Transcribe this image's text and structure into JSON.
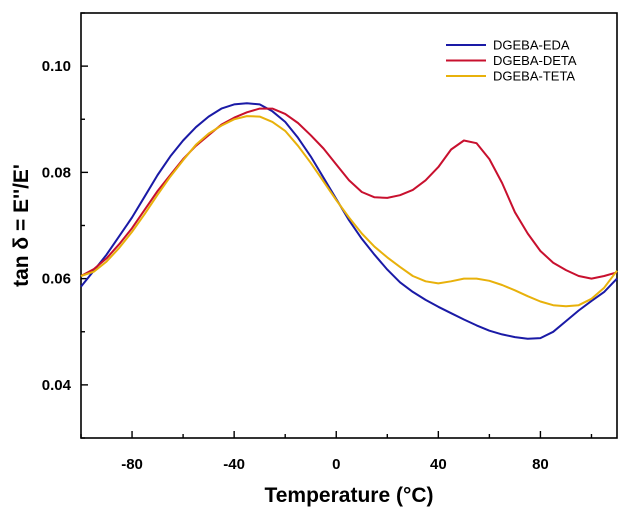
{
  "chart_data": {
    "type": "line",
    "title": "",
    "xlabel": "Temperature (°C)",
    "ylabel": "tan δ = E''/E'",
    "xlim": [
      -100,
      110
    ],
    "ylim": [
      0.03,
      0.11
    ],
    "xticks": [
      -80,
      -40,
      0,
      40,
      80
    ],
    "xtick_labels": [
      "-80",
      "-40",
      "0",
      "40",
      "80"
    ],
    "yticks": [
      0.04,
      0.06,
      0.08,
      0.1
    ],
    "ytick_labels": [
      "0.04",
      "0.06",
      "0.08",
      "0.10"
    ],
    "grid": false,
    "legend_position": "top-right",
    "series": [
      {
        "name": "DGEBA-EDA",
        "color": "#1a1aa6",
        "x": [
          -100,
          -95,
          -90,
          -85,
          -80,
          -75,
          -70,
          -65,
          -60,
          -55,
          -50,
          -45,
          -40,
          -35,
          -30,
          -25,
          -20,
          -15,
          -10,
          -5,
          0,
          5,
          10,
          15,
          20,
          25,
          30,
          35,
          40,
          45,
          50,
          55,
          60,
          65,
          70,
          75,
          80,
          85,
          90,
          95,
          100,
          105,
          110
        ],
        "y": [
          0.0585,
          0.0615,
          0.0645,
          0.068,
          0.0715,
          0.0755,
          0.0795,
          0.083,
          0.086,
          0.0885,
          0.0905,
          0.092,
          0.0928,
          0.093,
          0.0928,
          0.0915,
          0.0895,
          0.0865,
          0.083,
          0.079,
          0.075,
          0.071,
          0.0675,
          0.0645,
          0.0617,
          0.0593,
          0.0575,
          0.056,
          0.0547,
          0.0535,
          0.0523,
          0.0512,
          0.0502,
          0.0495,
          0.049,
          0.0487,
          0.0488,
          0.05,
          0.052,
          0.054,
          0.0558,
          0.0575,
          0.06
        ]
      },
      {
        "name": "DGEBA-DETA",
        "color": "#c8102e",
        "x": [
          -100,
          -95,
          -90,
          -85,
          -80,
          -75,
          -70,
          -65,
          -60,
          -55,
          -50,
          -45,
          -40,
          -35,
          -30,
          -25,
          -20,
          -15,
          -10,
          -5,
          0,
          5,
          10,
          15,
          20,
          25,
          30,
          35,
          40,
          45,
          50,
          55,
          60,
          65,
          70,
          75,
          80,
          85,
          90,
          95,
          100,
          105,
          110
        ],
        "y": [
          0.0605,
          0.0618,
          0.0638,
          0.0665,
          0.0695,
          0.073,
          0.0765,
          0.0795,
          0.0825,
          0.085,
          0.087,
          0.089,
          0.0903,
          0.0913,
          0.092,
          0.092,
          0.091,
          0.0893,
          0.087,
          0.0845,
          0.0815,
          0.0785,
          0.0763,
          0.0753,
          0.0752,
          0.0757,
          0.0767,
          0.0785,
          0.081,
          0.0843,
          0.086,
          0.0855,
          0.0825,
          0.078,
          0.0725,
          0.0685,
          0.0652,
          0.063,
          0.0616,
          0.0605,
          0.06,
          0.0605,
          0.0612
        ]
      },
      {
        "name": "DGEBA-TETA",
        "color": "#e8b10b",
        "x": [
          -100,
          -95,
          -90,
          -85,
          -80,
          -75,
          -70,
          -65,
          -60,
          -55,
          -50,
          -45,
          -40,
          -35,
          -30,
          -25,
          -20,
          -15,
          -10,
          -5,
          0,
          5,
          10,
          15,
          20,
          25,
          30,
          35,
          40,
          45,
          50,
          55,
          60,
          65,
          70,
          75,
          80,
          85,
          90,
          95,
          100,
          105,
          110
        ],
        "y": [
          0.0605,
          0.0613,
          0.0632,
          0.0658,
          0.0688,
          0.0722,
          0.0758,
          0.0792,
          0.0823,
          0.0852,
          0.0873,
          0.0888,
          0.09,
          0.0906,
          0.0905,
          0.0895,
          0.0878,
          0.085,
          0.0818,
          0.0783,
          0.0748,
          0.0715,
          0.0685,
          0.066,
          0.064,
          0.0622,
          0.0605,
          0.0595,
          0.0591,
          0.0595,
          0.06,
          0.06,
          0.0596,
          0.0588,
          0.0578,
          0.0567,
          0.0557,
          0.055,
          0.0548,
          0.055,
          0.0562,
          0.0583,
          0.0615
        ]
      }
    ]
  }
}
